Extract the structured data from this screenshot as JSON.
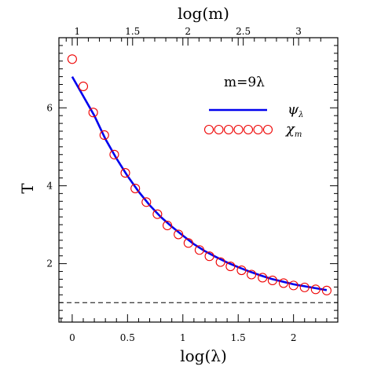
{
  "chart_data": {
    "type": "line",
    "x_axis": {
      "label": "log(λ)",
      "range": [
        -0.12,
        2.4
      ],
      "ticks": [
        0,
        0.5,
        1,
        1.5,
        2
      ],
      "tick_labels": [
        "0",
        "0.5",
        "1",
        "1.5",
        "2"
      ]
    },
    "top_axis": {
      "label": "log(m)",
      "tick_values_m": [
        1,
        1.5,
        2,
        2.5,
        3
      ],
      "tick_labels": [
        "1",
        "1.5",
        "2",
        "2.5",
        "3"
      ],
      "relation_offset": 0.9542
    },
    "y_axis": {
      "label": "T",
      "range": [
        0.5,
        7.8
      ],
      "ticks": [
        2,
        4,
        6
      ],
      "tick_labels": [
        "2",
        "4",
        "6"
      ]
    },
    "annotation": "m=9λ",
    "reference_line": {
      "y": 1.0,
      "style": "dashed",
      "color": "#000000"
    },
    "series": [
      {
        "name": "ψλ",
        "kind": "line",
        "color": "#0000ee",
        "x": [
          0,
          0.1,
          0.2,
          0.3,
          0.4,
          0.5,
          0.6,
          0.7,
          0.8,
          0.9,
          1.0,
          1.1,
          1.2,
          1.3,
          1.4,
          1.5,
          1.6,
          1.7,
          1.8,
          1.9,
          2.0,
          2.1,
          2.2,
          2.3
        ],
        "y": [
          6.8,
          6.3,
          5.8,
          5.2,
          4.7,
          4.25,
          3.85,
          3.5,
          3.2,
          2.95,
          2.72,
          2.5,
          2.32,
          2.17,
          2.03,
          1.91,
          1.8,
          1.7,
          1.61,
          1.54,
          1.47,
          1.42,
          1.37,
          1.32
        ]
      },
      {
        "name": "χm",
        "kind": "scatter",
        "marker": "open-circle",
        "color": "#ee0000",
        "x": [
          0,
          0.1,
          0.19,
          0.29,
          0.38,
          0.48,
          0.57,
          0.67,
          0.77,
          0.86,
          0.96,
          1.05,
          1.15,
          1.24,
          1.34,
          1.43,
          1.53,
          1.62,
          1.72,
          1.81,
          1.91,
          2.0,
          2.1,
          2.2,
          2.3
        ],
        "y": [
          7.25,
          6.55,
          5.88,
          5.3,
          4.8,
          4.33,
          3.93,
          3.58,
          3.27,
          2.98,
          2.75,
          2.53,
          2.35,
          2.19,
          2.04,
          1.93,
          1.83,
          1.72,
          1.64,
          1.57,
          1.5,
          1.44,
          1.39,
          1.34,
          1.31
        ]
      }
    ],
    "legend_position": "upper-right",
    "grid": false
  }
}
